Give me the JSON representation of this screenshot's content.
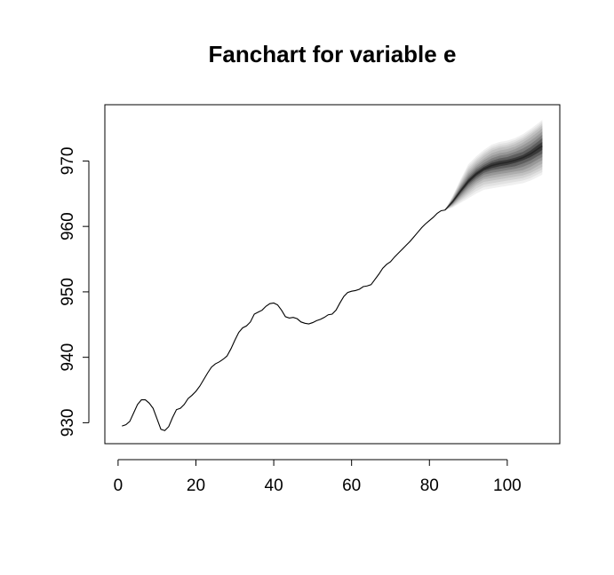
{
  "chart_data": {
    "type": "line",
    "title": "Fanchart for variable e",
    "xlabel": "",
    "ylabel": "",
    "xlim": [
      -3.4,
      113.5
    ],
    "ylim": [
      926.8,
      978.6
    ],
    "x_ticks": [
      0,
      20,
      40,
      60,
      80,
      100
    ],
    "y_ticks": [
      930,
      940,
      950,
      960,
      970
    ],
    "grid": false,
    "legend": "none",
    "colors": {
      "line": "#000000",
      "fan_shades": [
        "#f0f0f0",
        "#e2e2e2",
        "#d2d2d2",
        "#c1c1c1",
        "#aeaeae",
        "#989898",
        "#7e7e7e",
        "#5e5e5e",
        "#3a3a3a"
      ]
    },
    "series": [
      {
        "x": [
          1,
          2,
          3,
          4,
          5,
          6,
          7,
          8,
          9,
          10,
          11,
          12,
          13,
          14,
          15,
          16,
          17,
          18,
          19,
          20,
          21,
          22,
          23,
          24,
          25,
          26,
          27,
          28,
          29,
          30,
          31,
          32,
          33,
          34,
          35,
          36,
          37,
          38,
          39,
          40,
          41,
          42,
          43,
          44,
          45,
          46,
          47,
          48,
          49,
          50,
          51,
          52,
          53,
          54,
          55,
          56,
          57,
          58,
          59,
          60,
          61,
          62,
          63,
          64,
          65,
          66,
          67,
          68,
          69,
          70,
          71,
          72,
          73,
          74,
          75,
          76,
          77,
          78,
          79,
          80,
          81,
          82,
          83,
          84
        ],
        "values": [
          929.5,
          929.7,
          930.2,
          931.5,
          932.8,
          933.5,
          933.5,
          933.0,
          932.2,
          930.6,
          929.0,
          928.8,
          929.4,
          930.8,
          932.0,
          932.2,
          932.8,
          933.7,
          934.2,
          934.8,
          935.6,
          936.6,
          937.6,
          938.5,
          939.0,
          939.3,
          939.7,
          940.2,
          941.3,
          942.6,
          943.8,
          944.5,
          944.8,
          945.4,
          946.6,
          946.9,
          947.2,
          947.8,
          948.2,
          948.3,
          948.0,
          947.2,
          946.2,
          946.0,
          946.1,
          945.9,
          945.4,
          945.2,
          945.1,
          945.3,
          945.6,
          945.8,
          946.1,
          946.5,
          946.6,
          947.2,
          948.3,
          949.3,
          949.9,
          950.1,
          950.2,
          950.4,
          950.8,
          950.9,
          951.1,
          951.9,
          952.7,
          953.6,
          954.2,
          954.6,
          955.3,
          955.9,
          956.5,
          957.1,
          957.7,
          958.4,
          959.1,
          959.8,
          960.4,
          960.9,
          961.4,
          962.0,
          962.4,
          962.5
        ]
      }
    ],
    "fan": {
      "x": [
        84,
        86,
        88,
        90,
        92,
        94,
        96,
        98,
        100,
        102,
        104,
        106,
        108,
        109
      ],
      "median": [
        962.5,
        963.8,
        965.4,
        966.9,
        968.0,
        968.8,
        969.3,
        969.6,
        969.8,
        970.1,
        970.5,
        971.1,
        971.9,
        972.3
      ],
      "bands": [
        {
          "coverage": 0.1,
          "lower": [
            962.5,
            963.7,
            965.2,
            966.6,
            967.7,
            968.5,
            968.9,
            969.2,
            969.4,
            969.7,
            970.1,
            970.6,
            971.3,
            971.7
          ],
          "upper": [
            962.5,
            963.9,
            965.6,
            967.2,
            968.3,
            969.1,
            969.7,
            970.0,
            970.2,
            970.5,
            970.9,
            971.6,
            972.5,
            972.9
          ]
        },
        {
          "coverage": 0.2,
          "lower": [
            962.5,
            963.6,
            965.0,
            966.4,
            967.4,
            968.2,
            968.6,
            968.8,
            969.0,
            969.2,
            969.6,
            970.1,
            970.8,
            971.1
          ],
          "upper": [
            962.5,
            964.0,
            965.8,
            967.4,
            968.6,
            969.4,
            970.0,
            970.4,
            970.6,
            971.0,
            971.4,
            972.1,
            973.0,
            973.5
          ]
        },
        {
          "coverage": 0.3,
          "lower": [
            962.5,
            963.5,
            964.8,
            966.1,
            967.1,
            967.9,
            968.2,
            968.4,
            968.6,
            968.8,
            969.1,
            969.6,
            970.3,
            970.6
          ],
          "upper": [
            962.5,
            964.1,
            966.0,
            967.7,
            968.9,
            969.7,
            970.4,
            970.8,
            971.0,
            971.4,
            971.9,
            972.6,
            973.5,
            974.0
          ]
        },
        {
          "coverage": 0.4,
          "lower": [
            962.5,
            963.4,
            964.6,
            965.8,
            966.8,
            967.5,
            967.8,
            968.0,
            968.2,
            968.4,
            968.6,
            969.1,
            969.8,
            970.1
          ],
          "upper": [
            962.5,
            964.2,
            966.2,
            968.0,
            969.2,
            970.1,
            970.8,
            971.2,
            971.4,
            971.8,
            972.4,
            973.1,
            974.0,
            974.5
          ]
        },
        {
          "coverage": 0.5,
          "lower": [
            962.5,
            963.3,
            964.4,
            965.5,
            966.5,
            967.2,
            967.4,
            967.6,
            967.8,
            968.0,
            968.2,
            968.6,
            969.3,
            969.6
          ],
          "upper": [
            962.5,
            964.3,
            966.4,
            968.3,
            969.5,
            970.4,
            971.2,
            971.6,
            971.8,
            972.2,
            972.8,
            973.6,
            974.5,
            975.0
          ]
        },
        {
          "coverage": 0.6,
          "lower": [
            962.5,
            963.2,
            964.2,
            965.2,
            966.2,
            966.8,
            967.0,
            967.2,
            967.4,
            967.6,
            967.8,
            968.2,
            968.8,
            969.1
          ],
          "upper": [
            962.5,
            964.4,
            966.6,
            968.6,
            969.8,
            970.8,
            971.6,
            972.0,
            972.2,
            972.6,
            973.2,
            974.0,
            974.9,
            975.4
          ]
        },
        {
          "coverage": 0.7,
          "lower": [
            962.5,
            963.1,
            964.0,
            964.9,
            965.8,
            966.4,
            966.6,
            966.8,
            967.0,
            967.2,
            967.4,
            967.8,
            968.4,
            968.7
          ],
          "upper": [
            962.5,
            964.5,
            966.8,
            968.9,
            970.1,
            971.1,
            971.9,
            972.3,
            972.5,
            972.9,
            973.5,
            974.3,
            975.2,
            975.7
          ]
        },
        {
          "coverage": 0.8,
          "lower": [
            962.5,
            963.0,
            963.8,
            964.6,
            965.4,
            966.0,
            966.2,
            966.4,
            966.6,
            966.8,
            967.0,
            967.4,
            968.0,
            968.3
          ],
          "upper": [
            962.5,
            964.6,
            967.0,
            969.2,
            970.4,
            971.4,
            972.2,
            972.6,
            972.8,
            973.2,
            973.8,
            974.6,
            975.5,
            976.0
          ]
        },
        {
          "coverage": 0.9,
          "lower": [
            962.5,
            962.9,
            963.6,
            964.3,
            965.0,
            965.6,
            965.8,
            966.0,
            966.2,
            966.4,
            966.6,
            967.0,
            967.6,
            967.9
          ],
          "upper": [
            962.5,
            964.7,
            967.2,
            969.5,
            970.7,
            971.7,
            972.5,
            972.9,
            973.1,
            973.5,
            974.1,
            974.9,
            975.8,
            976.3
          ]
        }
      ]
    }
  }
}
